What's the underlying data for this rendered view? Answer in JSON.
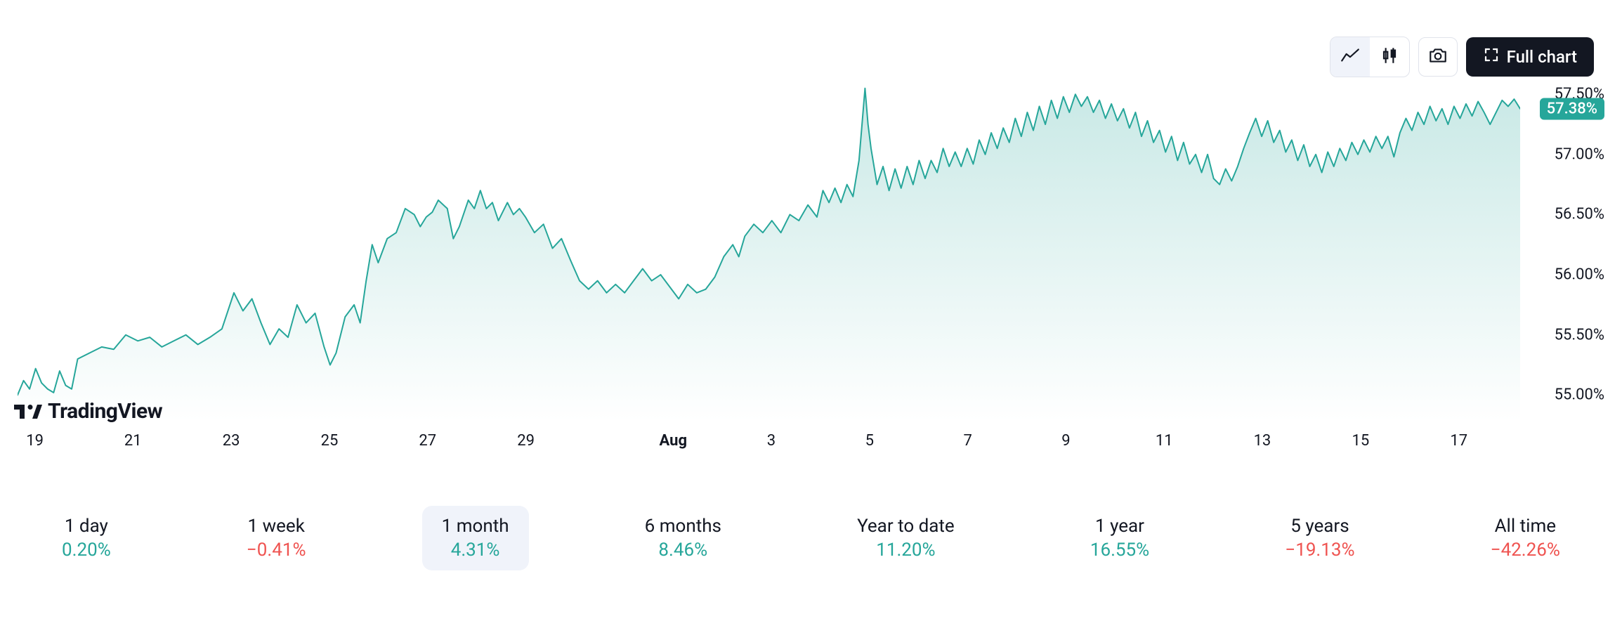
{
  "toolbar": {
    "full_chart_label": "Full chart"
  },
  "watermark": {
    "text": "TradingView"
  },
  "chart": {
    "type": "area",
    "line_color": "#26a69a",
    "line_width": 2,
    "area_top_color": "rgba(38,166,154,0.25)",
    "area_bottom_color": "rgba(38,166,154,0.00)",
    "background_color": "#ffffff",
    "y_axis": {
      "label_fontsize": 22,
      "label_color": "#131722",
      "ylim": [
        54.78,
        57.7
      ],
      "ticks": [
        57.5,
        57.0,
        56.5,
        56.0,
        55.5,
        55.0
      ],
      "tick_suffix": "%"
    },
    "last_value": {
      "value": 57.38,
      "label": "57.38%",
      "badge_bg": "#26a69a",
      "badge_text": "#ffffff"
    },
    "x_axis": {
      "label_fontsize": 22,
      "ticks": [
        {
          "pos": 0.0115,
          "label": "19",
          "bold": false
        },
        {
          "pos": 0.0768,
          "label": "21",
          "bold": false
        },
        {
          "pos": 0.1422,
          "label": "23",
          "bold": false
        },
        {
          "pos": 0.2076,
          "label": "25",
          "bold": false
        },
        {
          "pos": 0.2729,
          "label": "27",
          "bold": false
        },
        {
          "pos": 0.3383,
          "label": "29",
          "bold": false
        },
        {
          "pos": 0.4363,
          "label": "Aug",
          "bold": true
        },
        {
          "pos": 0.5016,
          "label": "3",
          "bold": false
        },
        {
          "pos": 0.567,
          "label": "5",
          "bold": false
        },
        {
          "pos": 0.6324,
          "label": "7",
          "bold": false
        },
        {
          "pos": 0.6977,
          "label": "9",
          "bold": false
        },
        {
          "pos": 0.7631,
          "label": "11",
          "bold": false
        },
        {
          "pos": 0.8284,
          "label": "13",
          "bold": false
        },
        {
          "pos": 0.8938,
          "label": "15",
          "bold": false
        },
        {
          "pos": 0.9592,
          "label": "17",
          "bold": false
        }
      ]
    },
    "series": [
      [
        0.0,
        55.0
      ],
      [
        0.004,
        55.12
      ],
      [
        0.008,
        55.05
      ],
      [
        0.012,
        55.22
      ],
      [
        0.016,
        55.1
      ],
      [
        0.02,
        55.05
      ],
      [
        0.024,
        55.02
      ],
      [
        0.028,
        55.2
      ],
      [
        0.032,
        55.08
      ],
      [
        0.036,
        55.05
      ],
      [
        0.04,
        55.3
      ],
      [
        0.048,
        55.35
      ],
      [
        0.056,
        55.4
      ],
      [
        0.064,
        55.38
      ],
      [
        0.072,
        55.5
      ],
      [
        0.08,
        55.45
      ],
      [
        0.088,
        55.48
      ],
      [
        0.096,
        55.4
      ],
      [
        0.104,
        55.45
      ],
      [
        0.112,
        55.5
      ],
      [
        0.12,
        55.42
      ],
      [
        0.128,
        55.48
      ],
      [
        0.136,
        55.55
      ],
      [
        0.144,
        55.85
      ],
      [
        0.15,
        55.7
      ],
      [
        0.156,
        55.8
      ],
      [
        0.162,
        55.6
      ],
      [
        0.168,
        55.42
      ],
      [
        0.174,
        55.55
      ],
      [
        0.18,
        55.48
      ],
      [
        0.186,
        55.75
      ],
      [
        0.192,
        55.6
      ],
      [
        0.198,
        55.68
      ],
      [
        0.204,
        55.4
      ],
      [
        0.208,
        55.25
      ],
      [
        0.212,
        55.35
      ],
      [
        0.218,
        55.65
      ],
      [
        0.224,
        55.75
      ],
      [
        0.228,
        55.6
      ],
      [
        0.232,
        55.95
      ],
      [
        0.236,
        56.25
      ],
      [
        0.24,
        56.1
      ],
      [
        0.246,
        56.3
      ],
      [
        0.252,
        56.35
      ],
      [
        0.258,
        56.55
      ],
      [
        0.264,
        56.5
      ],
      [
        0.268,
        56.4
      ],
      [
        0.272,
        56.48
      ],
      [
        0.276,
        56.52
      ],
      [
        0.28,
        56.62
      ],
      [
        0.286,
        56.55
      ],
      [
        0.29,
        56.3
      ],
      [
        0.294,
        56.4
      ],
      [
        0.3,
        56.62
      ],
      [
        0.304,
        56.55
      ],
      [
        0.308,
        56.7
      ],
      [
        0.312,
        56.55
      ],
      [
        0.316,
        56.6
      ],
      [
        0.32,
        56.45
      ],
      [
        0.326,
        56.6
      ],
      [
        0.33,
        56.5
      ],
      [
        0.334,
        56.55
      ],
      [
        0.338,
        56.48
      ],
      [
        0.344,
        56.35
      ],
      [
        0.35,
        56.42
      ],
      [
        0.356,
        56.22
      ],
      [
        0.362,
        56.3
      ],
      [
        0.368,
        56.12
      ],
      [
        0.374,
        55.95
      ],
      [
        0.38,
        55.88
      ],
      [
        0.386,
        55.95
      ],
      [
        0.392,
        55.85
      ],
      [
        0.398,
        55.92
      ],
      [
        0.404,
        55.85
      ],
      [
        0.41,
        55.95
      ],
      [
        0.416,
        56.05
      ],
      [
        0.422,
        55.95
      ],
      [
        0.428,
        56.0
      ],
      [
        0.434,
        55.9
      ],
      [
        0.44,
        55.8
      ],
      [
        0.446,
        55.92
      ],
      [
        0.452,
        55.85
      ],
      [
        0.458,
        55.88
      ],
      [
        0.464,
        55.98
      ],
      [
        0.47,
        56.15
      ],
      [
        0.476,
        56.25
      ],
      [
        0.48,
        56.15
      ],
      [
        0.484,
        56.32
      ],
      [
        0.49,
        56.42
      ],
      [
        0.496,
        56.35
      ],
      [
        0.502,
        56.45
      ],
      [
        0.508,
        56.35
      ],
      [
        0.514,
        56.5
      ],
      [
        0.52,
        56.45
      ],
      [
        0.526,
        56.58
      ],
      [
        0.532,
        56.48
      ],
      [
        0.536,
        56.7
      ],
      [
        0.54,
        56.6
      ],
      [
        0.544,
        56.72
      ],
      [
        0.548,
        56.6
      ],
      [
        0.552,
        56.75
      ],
      [
        0.556,
        56.65
      ],
      [
        0.56,
        56.95
      ],
      [
        0.564,
        57.55
      ],
      [
        0.566,
        57.25
      ],
      [
        0.568,
        57.05
      ],
      [
        0.572,
        56.75
      ],
      [
        0.576,
        56.9
      ],
      [
        0.58,
        56.7
      ],
      [
        0.584,
        56.88
      ],
      [
        0.588,
        56.72
      ],
      [
        0.592,
        56.9
      ],
      [
        0.596,
        56.75
      ],
      [
        0.6,
        56.95
      ],
      [
        0.604,
        56.8
      ],
      [
        0.608,
        56.95
      ],
      [
        0.612,
        56.85
      ],
      [
        0.616,
        57.05
      ],
      [
        0.62,
        56.9
      ],
      [
        0.624,
        57.02
      ],
      [
        0.628,
        56.9
      ],
      [
        0.632,
        57.05
      ],
      [
        0.636,
        56.92
      ],
      [
        0.64,
        57.12
      ],
      [
        0.644,
        57.0
      ],
      [
        0.648,
        57.18
      ],
      [
        0.652,
        57.05
      ],
      [
        0.656,
        57.22
      ],
      [
        0.66,
        57.1
      ],
      [
        0.664,
        57.3
      ],
      [
        0.668,
        57.15
      ],
      [
        0.672,
        57.35
      ],
      [
        0.676,
        57.2
      ],
      [
        0.68,
        57.4
      ],
      [
        0.684,
        57.25
      ],
      [
        0.688,
        57.45
      ],
      [
        0.692,
        57.3
      ],
      [
        0.696,
        57.48
      ],
      [
        0.7,
        57.35
      ],
      [
        0.704,
        57.5
      ],
      [
        0.708,
        57.4
      ],
      [
        0.712,
        57.48
      ],
      [
        0.716,
        57.35
      ],
      [
        0.72,
        57.45
      ],
      [
        0.724,
        57.3
      ],
      [
        0.728,
        57.42
      ],
      [
        0.732,
        57.28
      ],
      [
        0.736,
        57.38
      ],
      [
        0.74,
        57.22
      ],
      [
        0.744,
        57.35
      ],
      [
        0.748,
        57.15
      ],
      [
        0.752,
        57.28
      ],
      [
        0.756,
        57.1
      ],
      [
        0.76,
        57.2
      ],
      [
        0.764,
        57.02
      ],
      [
        0.768,
        57.15
      ],
      [
        0.772,
        56.95
      ],
      [
        0.776,
        57.1
      ],
      [
        0.78,
        56.92
      ],
      [
        0.784,
        57.0
      ],
      [
        0.788,
        56.85
      ],
      [
        0.792,
        57.0
      ],
      [
        0.796,
        56.8
      ],
      [
        0.8,
        56.75
      ],
      [
        0.804,
        56.88
      ],
      [
        0.808,
        56.78
      ],
      [
        0.812,
        56.9
      ],
      [
        0.816,
        57.05
      ],
      [
        0.82,
        57.18
      ],
      [
        0.824,
        57.3
      ],
      [
        0.828,
        57.15
      ],
      [
        0.832,
        57.28
      ],
      [
        0.836,
        57.1
      ],
      [
        0.84,
        57.2
      ],
      [
        0.844,
        57.02
      ],
      [
        0.848,
        57.12
      ],
      [
        0.852,
        56.95
      ],
      [
        0.856,
        57.08
      ],
      [
        0.86,
        56.9
      ],
      [
        0.864,
        57.0
      ],
      [
        0.868,
        56.85
      ],
      [
        0.872,
        57.02
      ],
      [
        0.876,
        56.9
      ],
      [
        0.88,
        57.05
      ],
      [
        0.884,
        56.95
      ],
      [
        0.888,
        57.1
      ],
      [
        0.892,
        57.0
      ],
      [
        0.896,
        57.12
      ],
      [
        0.9,
        57.02
      ],
      [
        0.904,
        57.15
      ],
      [
        0.908,
        57.05
      ],
      [
        0.912,
        57.15
      ],
      [
        0.916,
        56.98
      ],
      [
        0.92,
        57.18
      ],
      [
        0.924,
        57.3
      ],
      [
        0.928,
        57.2
      ],
      [
        0.932,
        57.35
      ],
      [
        0.936,
        57.25
      ],
      [
        0.94,
        57.4
      ],
      [
        0.944,
        57.28
      ],
      [
        0.948,
        57.38
      ],
      [
        0.952,
        57.25
      ],
      [
        0.956,
        57.4
      ],
      [
        0.96,
        57.3
      ],
      [
        0.964,
        57.42
      ],
      [
        0.968,
        57.32
      ],
      [
        0.972,
        57.44
      ],
      [
        0.976,
        57.35
      ],
      [
        0.98,
        57.25
      ],
      [
        0.984,
        57.35
      ],
      [
        0.988,
        57.45
      ],
      [
        0.992,
        57.4
      ],
      [
        0.996,
        57.46
      ],
      [
        1.0,
        57.38
      ]
    ]
  },
  "periods": {
    "positive_color": "#26a69a",
    "negative_color": "#ef5350",
    "items": [
      {
        "label": "1 day",
        "value": "0.20%",
        "positive": true,
        "active": false
      },
      {
        "label": "1 week",
        "value": "−0.41%",
        "positive": false,
        "active": false
      },
      {
        "label": "1 month",
        "value": "4.31%",
        "positive": true,
        "active": true
      },
      {
        "label": "6 months",
        "value": "8.46%",
        "positive": true,
        "active": false
      },
      {
        "label": "Year to date",
        "value": "11.20%",
        "positive": true,
        "active": false
      },
      {
        "label": "1 year",
        "value": "16.55%",
        "positive": true,
        "active": false
      },
      {
        "label": "5 years",
        "value": "−19.13%",
        "positive": false,
        "active": false
      },
      {
        "label": "All time",
        "value": "−42.26%",
        "positive": false,
        "active": false
      }
    ]
  }
}
